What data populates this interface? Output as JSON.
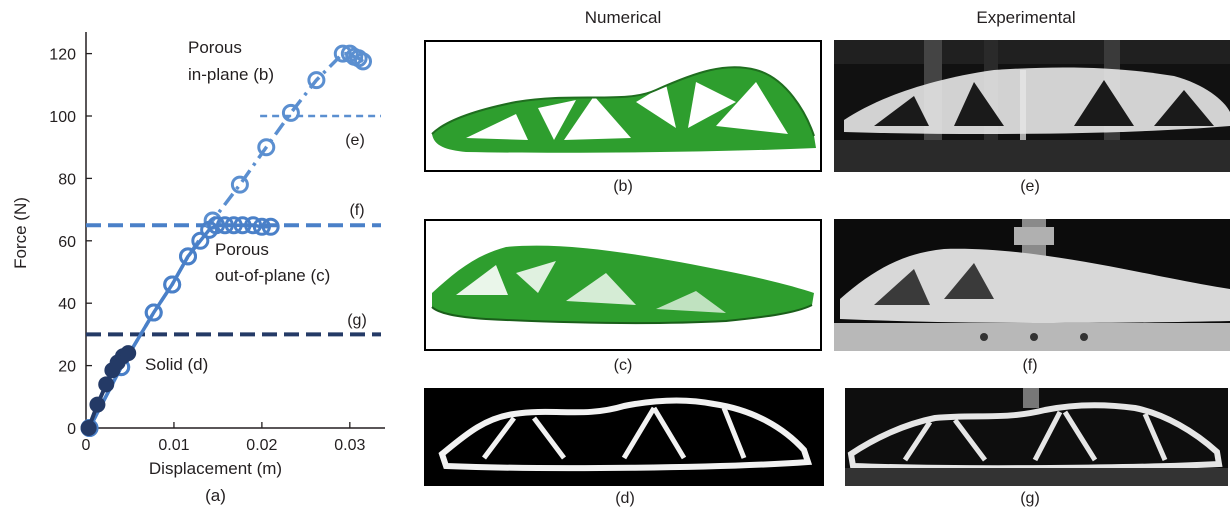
{
  "column_headers": {
    "numerical": "Numerical",
    "experimental": "Experimental"
  },
  "panel_captions": {
    "b": "(b)",
    "c": "(c)",
    "d": "(d)",
    "e": "(e)",
    "f": "(f)",
    "g": "(g)"
  },
  "colors": {
    "porous_in_plane": "#5b8fd0",
    "porous_out_of_plane": "#4a80c8",
    "solid": "#243a66",
    "fem_green": "#2e9e2e",
    "specimen_white": "#f2f2f2"
  },
  "chart_data": {
    "type": "line",
    "caption": "(a)",
    "xlabel": "Displacement (m)",
    "ylabel": "Force (N)",
    "xlim": [
      0,
      0.034
    ],
    "ylim": [
      0,
      125
    ],
    "xticks": [
      0,
      0.01,
      0.02,
      0.03
    ],
    "xtick_labels": [
      "0",
      "0.01",
      "0.02",
      "0.03"
    ],
    "yticks": [
      0,
      20,
      40,
      60,
      80,
      100,
      120
    ],
    "ytick_labels": [
      "0",
      "20",
      "40",
      "60",
      "80",
      "100",
      "120"
    ],
    "grid": false,
    "series": [
      {
        "name": "Porous in-plane (b)",
        "label_lines": [
          "Porous",
          "in-plane (b)"
        ],
        "style": "dash-dot",
        "color": "#5b8fd0",
        "x": [
          0.0004,
          0.004,
          0.0077,
          0.0098,
          0.0116,
          0.0144,
          0.0175,
          0.0205,
          0.0233,
          0.0262,
          0.0292,
          0.03,
          0.0305,
          0.031,
          0.0315
        ],
        "y": [
          0,
          19.5,
          37,
          46,
          55,
          66.5,
          78,
          90,
          101,
          111.5,
          120,
          120,
          119,
          118.5,
          117.5
        ]
      },
      {
        "name": "Porous out-of-plane (c)",
        "label_lines": [
          "Porous",
          "out-of-plane (c)"
        ],
        "style": "solid",
        "color": "#4a80c8",
        "x": [
          0.0004,
          0.004,
          0.0077,
          0.0098,
          0.0116,
          0.013,
          0.014,
          0.0148,
          0.0158,
          0.0168,
          0.0178,
          0.019,
          0.02,
          0.021
        ],
        "y": [
          0,
          19.5,
          37,
          46,
          55,
          60,
          63.5,
          65,
          65,
          65,
          65,
          65,
          64.5,
          64.5
        ]
      },
      {
        "name": "Solid (d)",
        "label_lines": [
          "Solid (d)"
        ],
        "style": "solid",
        "color": "#243a66",
        "x": [
          0.0003,
          0.0013,
          0.0023,
          0.003,
          0.0036,
          0.0042,
          0.0048
        ],
        "y": [
          0,
          7.5,
          14,
          18.5,
          21,
          23,
          24
        ]
      }
    ],
    "reference_lines": [
      {
        "label": "(e)",
        "y": 100,
        "x_start": 0.0198,
        "style": "short-dash",
        "color": "#5b8fd0"
      },
      {
        "label": "(f)",
        "y": 65,
        "x_start": 0,
        "style": "long-dash",
        "color": "#4a80c8"
      },
      {
        "label": "(g)",
        "y": 30,
        "x_start": 0,
        "style": "long-dash",
        "color": "#243a66"
      }
    ]
  }
}
